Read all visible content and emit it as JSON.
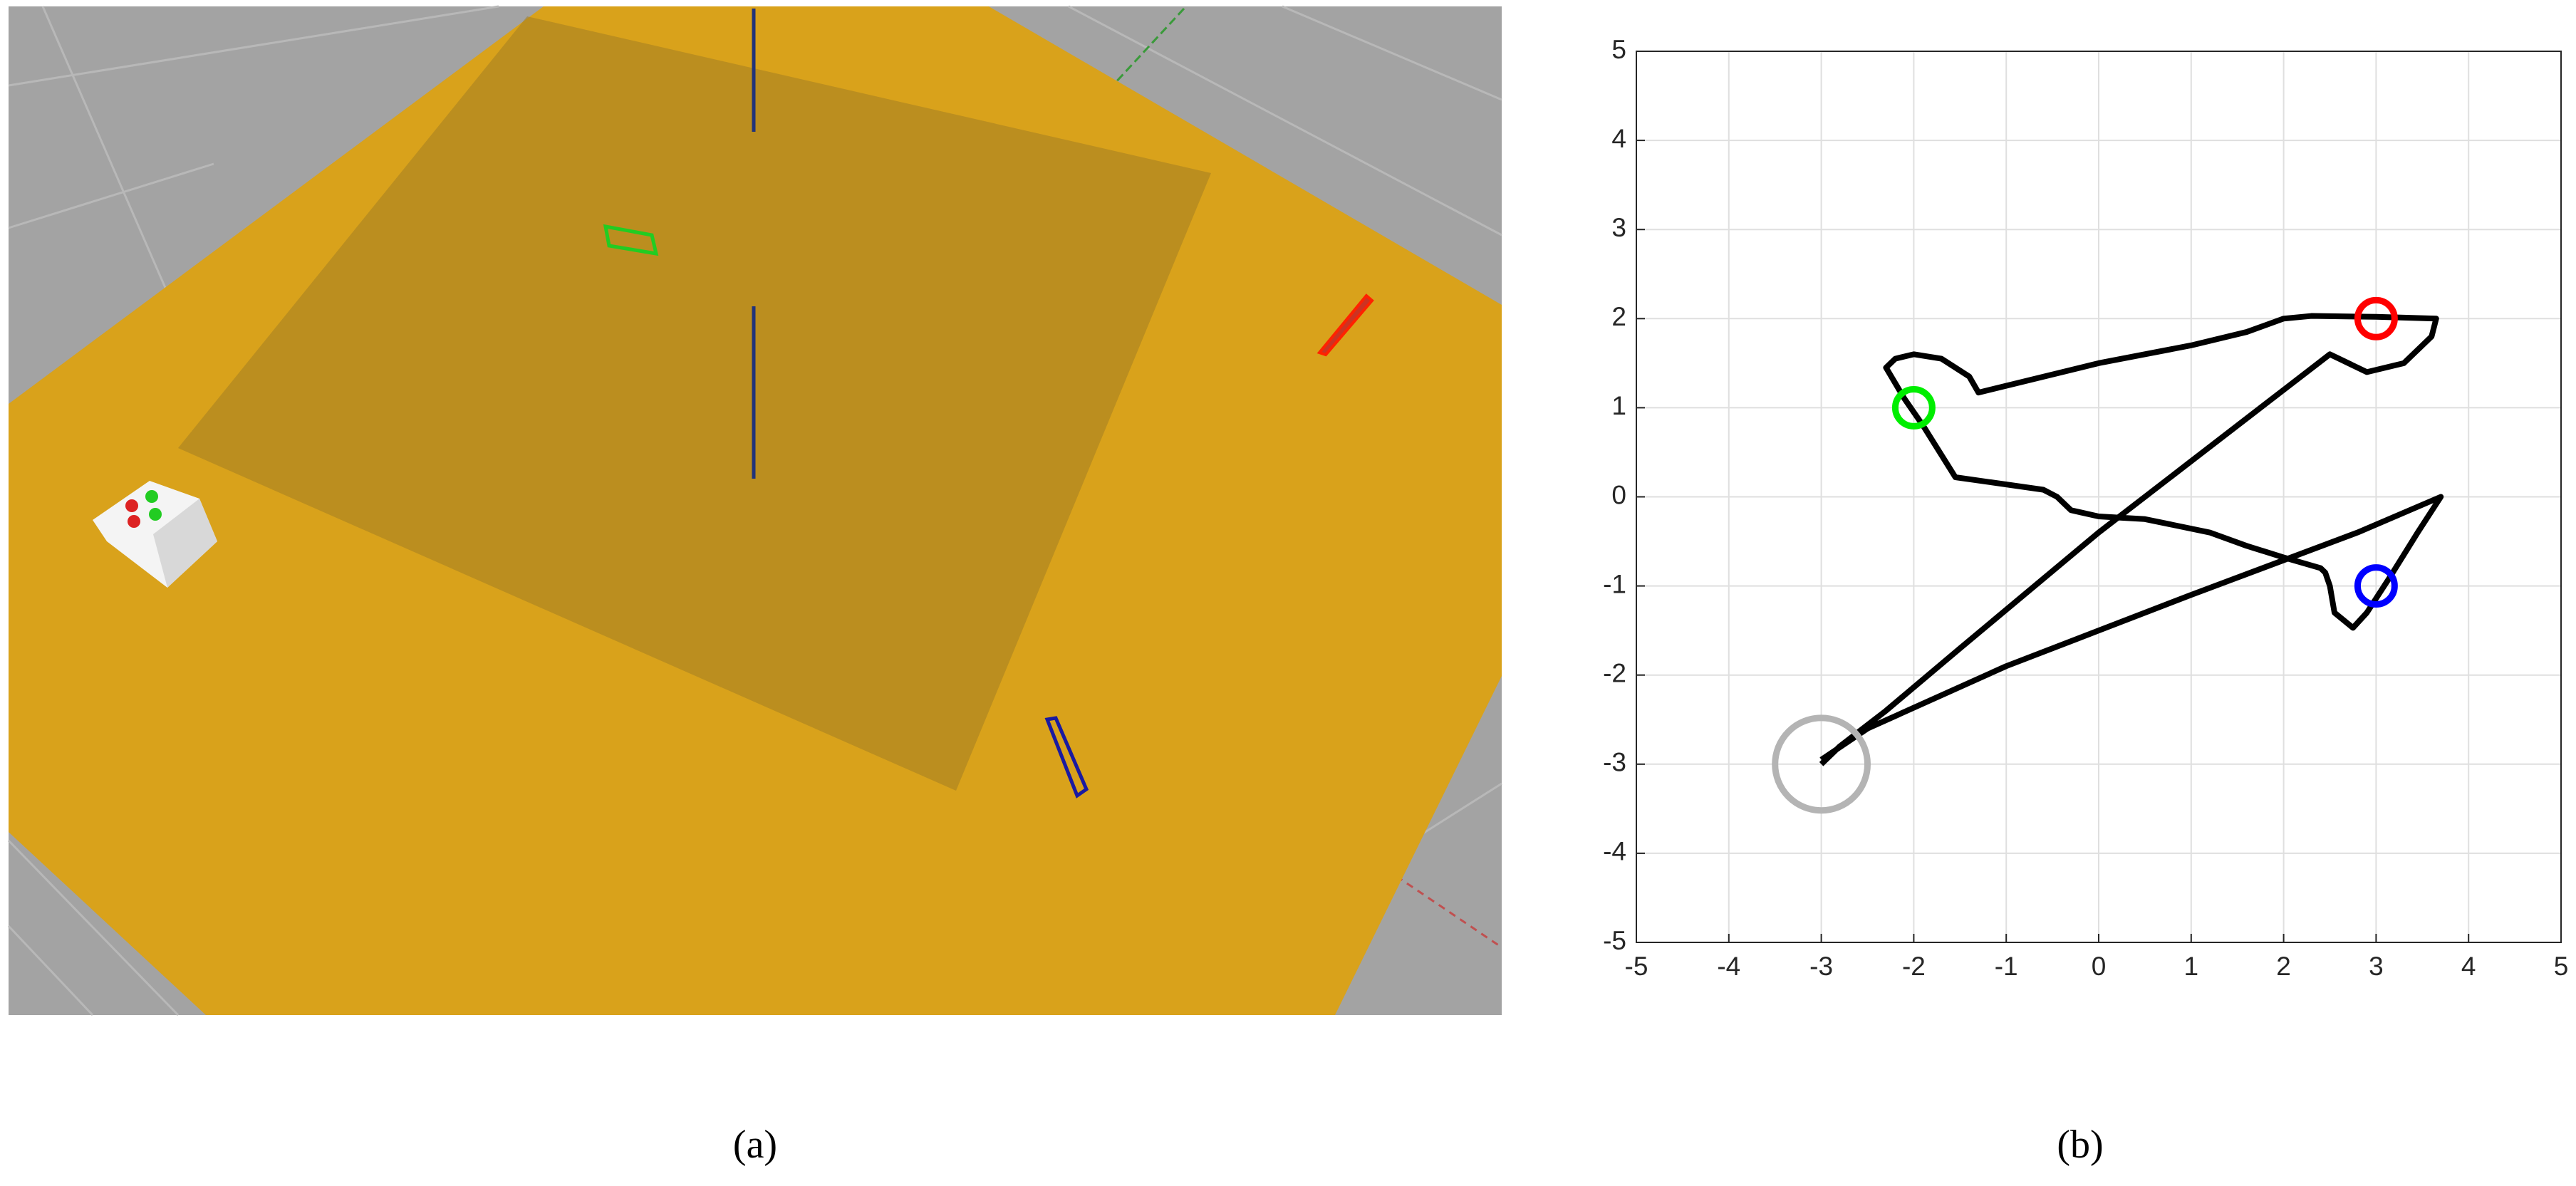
{
  "captions": [
    "(a)",
    "(b)"
  ],
  "chart_data": {
    "type": "line",
    "xlim": [
      -5,
      5
    ],
    "ylim": [
      -5,
      5
    ],
    "xticks": [
      -5,
      -4,
      -3,
      -2,
      -1,
      0,
      1,
      2,
      3,
      4,
      5
    ],
    "yticks": [
      -5,
      -4,
      -3,
      -2,
      -1,
      0,
      1,
      2,
      3,
      4,
      5
    ],
    "grid": true,
    "series": [
      {
        "color": "#000000",
        "x": [
          -3,
          -2.8,
          -2.3,
          -1.5,
          0,
          1,
          2,
          2.5,
          2.9,
          3.3,
          3.6,
          3.65,
          3,
          2.3,
          2,
          1.6,
          1,
          0,
          -1.3,
          -1.4,
          -1.7,
          -2,
          -2.2,
          -2.3,
          -2.1,
          -1.9,
          -1.55,
          -0.6,
          -0.45,
          -0.3,
          0,
          0.5,
          1.2,
          1.6,
          2,
          2.4,
          2.45,
          2.5,
          2.55,
          2.75,
          2.9,
          3.15,
          3.45,
          3.7,
          2.8,
          1,
          -1,
          -2.5,
          -3
        ],
        "y": [
          -3,
          -2.8,
          -2.4,
          -1.7,
          -0.4,
          0.4,
          1.2,
          1.6,
          1.4,
          1.5,
          1.8,
          2.0,
          2.02,
          2.03,
          2.0,
          1.85,
          1.7,
          1.5,
          1.17,
          1.35,
          1.55,
          1.6,
          1.55,
          1.45,
          1.1,
          0.8,
          0.22,
          0.08,
          0,
          -0.15,
          -0.22,
          -0.25,
          -0.4,
          -0.55,
          -0.68,
          -0.8,
          -0.85,
          -1.0,
          -1.3,
          -1.47,
          -1.3,
          -0.9,
          -0.4,
          0,
          -0.4,
          -1.1,
          -1.9,
          -2.6,
          -2.95
        ]
      }
    ],
    "markers": [
      {
        "color": "#ff0000",
        "x": 3,
        "y": 2,
        "r": 0.2
      },
      {
        "color": "#00ee00",
        "x": -2,
        "y": 1,
        "r": 0.2
      },
      {
        "color": "#0000ff",
        "x": 3,
        "y": -1,
        "r": 0.2
      },
      {
        "color": "#b4b4b4",
        "x": -3,
        "y": -3,
        "r": 0.5
      }
    ]
  }
}
